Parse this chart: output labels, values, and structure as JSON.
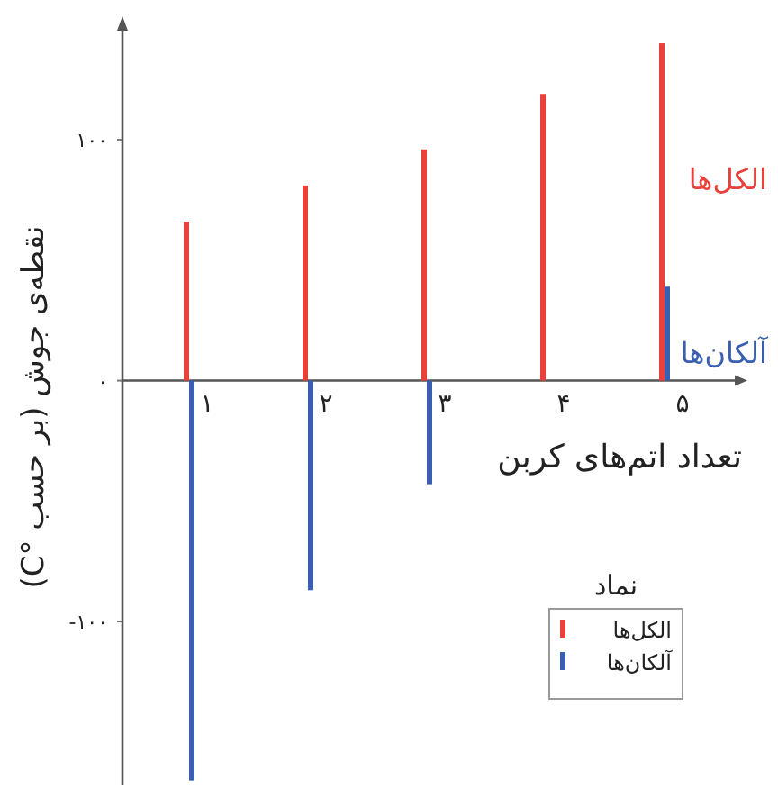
{
  "chart_data": {
    "type": "bar",
    "xlabel": "تعداد اتم‌های کربن",
    "ylabel": "نقطه‌ی جوش (بر حسب °C)",
    "legend_title": "نماد",
    "legend": "bottom right",
    "categories": [
      "۱",
      "۲",
      "۳",
      "۴",
      "۵"
    ],
    "series": [
      {
        "name": "الکل‌ها",
        "color": "#e8403a",
        "values": [
          66,
          81,
          96,
          119,
          140
        ]
      },
      {
        "name": "آلکان‌ها",
        "color": "#3a5fb0",
        "values": [
          -166,
          -87,
          -43,
          0,
          39
        ]
      }
    ],
    "ylim": [
      -168,
      146
    ],
    "yticks": [
      {
        "value": -100,
        "label": "-۱۰۰"
      },
      {
        "value": 0,
        "label": "۰"
      },
      {
        "value": 100,
        "label": "۱۰۰"
      }
    ]
  }
}
